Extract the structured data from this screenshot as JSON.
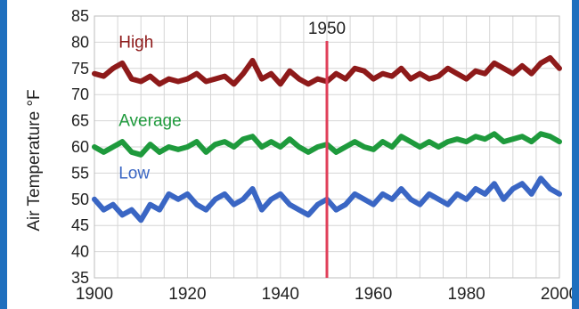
{
  "chart_data": {
    "type": "line",
    "xlabel": "",
    "ylabel": "Air Temperature °F",
    "xlim": [
      1900,
      2000
    ],
    "ylim": [
      35,
      85
    ],
    "x_ticks": [
      "1900",
      "1920",
      "1940",
      "1960",
      "1980",
      "2000"
    ],
    "y_ticks": [
      "35",
      "40",
      "45",
      "50",
      "55",
      "60",
      "65",
      "70",
      "75",
      "80",
      "85"
    ],
    "grid": true,
    "marker": {
      "x": 1950,
      "label": "1950",
      "color": "#e0405a"
    },
    "series": [
      {
        "name": "High",
        "color": "#8e1a1a",
        "label_color": "#8e1a1a",
        "label_x": 1901,
        "label_y": 79,
        "x": [
          1900,
          1902,
          1904,
          1906,
          1908,
          1910,
          1912,
          1914,
          1916,
          1918,
          1920,
          1922,
          1924,
          1926,
          1928,
          1930,
          1932,
          1934,
          1936,
          1938,
          1940,
          1942,
          1944,
          1946,
          1948,
          1950,
          1952,
          1954,
          1956,
          1958,
          1960,
          1962,
          1964,
          1966,
          1968,
          1970,
          1972,
          1974,
          1976,
          1978,
          1980,
          1982,
          1984,
          1986,
          1988,
          1990,
          1992,
          1994,
          1996,
          1998,
          2000
        ],
        "values": [
          74,
          73.5,
          75,
          76,
          73,
          72.5,
          73.5,
          72,
          73,
          72.5,
          73,
          74,
          72.5,
          73,
          73.5,
          72,
          74,
          76.5,
          73,
          74,
          72,
          74.5,
          73,
          72,
          73,
          72.5,
          74,
          73,
          75,
          74.5,
          73,
          74,
          73.5,
          75,
          73,
          74,
          73,
          73.5,
          75,
          74,
          73,
          74.5,
          74,
          76,
          75,
          74,
          75.5,
          74,
          76,
          77,
          75
        ]
      },
      {
        "name": "Average",
        "color": "#1e9a3c",
        "label_color": "#1e9a3c",
        "label_x": 1901,
        "label_y": 64,
        "x": [
          1900,
          1902,
          1904,
          1906,
          1908,
          1910,
          1912,
          1914,
          1916,
          1918,
          1920,
          1922,
          1924,
          1926,
          1928,
          1930,
          1932,
          1934,
          1936,
          1938,
          1940,
          1942,
          1944,
          1946,
          1948,
          1950,
          1952,
          1954,
          1956,
          1958,
          1960,
          1962,
          1964,
          1966,
          1968,
          1970,
          1972,
          1974,
          1976,
          1978,
          1980,
          1982,
          1984,
          1986,
          1988,
          1990,
          1992,
          1994,
          1996,
          1998,
          2000
        ],
        "values": [
          60,
          59,
          60,
          61,
          59,
          58.5,
          60.5,
          59,
          60,
          59.5,
          60,
          61,
          59,
          60.5,
          61,
          60,
          61.5,
          62,
          60,
          61,
          60,
          61.5,
          60,
          59,
          60,
          60.5,
          59,
          60,
          61,
          60,
          59.5,
          61,
          60,
          62,
          61,
          60,
          61,
          60,
          61,
          61.5,
          61,
          62,
          61.5,
          62.5,
          61,
          61.5,
          62,
          61,
          62.5,
          62,
          61
        ]
      },
      {
        "name": "Low",
        "color": "#3a66c4",
        "label_color": "#3a66c4",
        "label_x": 1901,
        "label_y": 54,
        "x": [
          1900,
          1902,
          1904,
          1906,
          1908,
          1910,
          1912,
          1914,
          1916,
          1918,
          1920,
          1922,
          1924,
          1926,
          1928,
          1930,
          1932,
          1934,
          1936,
          1938,
          1940,
          1942,
          1944,
          1946,
          1948,
          1950,
          1952,
          1954,
          1956,
          1958,
          1960,
          1962,
          1964,
          1966,
          1968,
          1970,
          1972,
          1974,
          1976,
          1978,
          1980,
          1982,
          1984,
          1986,
          1988,
          1990,
          1992,
          1994,
          1996,
          1998,
          2000
        ],
        "values": [
          50,
          48,
          49,
          47,
          48,
          46,
          49,
          48,
          51,
          50,
          51,
          49,
          48,
          50,
          51,
          49,
          50,
          52,
          48,
          50,
          51,
          49,
          48,
          47,
          49,
          50,
          48,
          49,
          51,
          50,
          49,
          51,
          50,
          52,
          50,
          49,
          51,
          50,
          49,
          51,
          50,
          52,
          51,
          53,
          50,
          52,
          53,
          51,
          54,
          52,
          51
        ]
      }
    ]
  }
}
